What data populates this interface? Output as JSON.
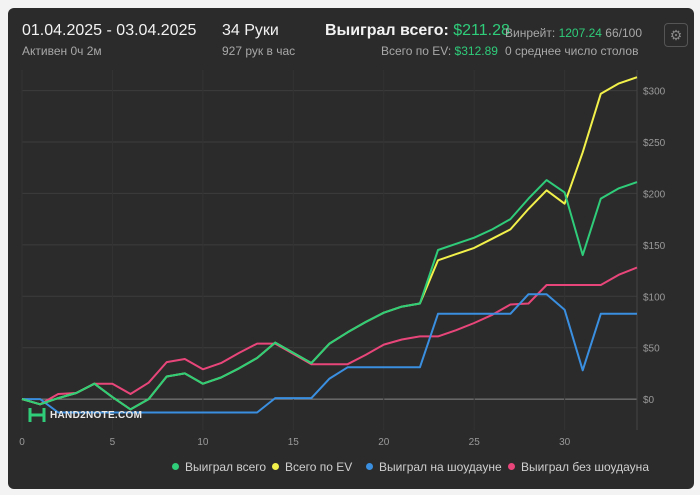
{
  "header": {
    "date_range": "01.04.2025 - 03.04.2025",
    "active": "Активен 0ч 2м",
    "hands": "34 Руки",
    "hands_per_hour": "927 рук в час",
    "won_total_label": "Выиграл всего:",
    "won_total_value": "$211.28",
    "ev_label": "Всего по EV:",
    "ev_value": "$312.89",
    "winrate_label": "Винрейт:",
    "winrate_value": "1207.24",
    "winrate_rest": "66/100",
    "avg_tables": "0 среднее число столов"
  },
  "logo_text": "HAND2NOTE.COM",
  "legend": [
    {
      "label": "Выиграл всего",
      "color": "#2fcc7a"
    },
    {
      "label": "Всего по EV",
      "color": "#f2f04a"
    },
    {
      "label": "Выиграл на шоудауне",
      "color": "#3a8fe0"
    },
    {
      "label": "Выиграл без шоудауна",
      "color": "#e8467a"
    }
  ],
  "chart_data": {
    "type": "line",
    "xlim": [
      0,
      34
    ],
    "ylim": [
      -30,
      320
    ],
    "x_ticks": [
      0,
      5,
      10,
      15,
      20,
      25,
      30
    ],
    "y_ticks": [
      0,
      50,
      100,
      150,
      200,
      250,
      300
    ],
    "y_tick_labels": [
      "$0",
      "$50",
      "$100",
      "$150",
      "$200",
      "$250",
      "$300"
    ],
    "grid": true,
    "series": [
      {
        "name": "Выиграл всего",
        "color": "#2fcc7a",
        "x": [
          0,
          1,
          2,
          3,
          4,
          5,
          6,
          7,
          8,
          9,
          10,
          11,
          12,
          13,
          14,
          15,
          16,
          17,
          18,
          19,
          20,
          21,
          22,
          23,
          24,
          25,
          26,
          27,
          28,
          29,
          30,
          31,
          32,
          33,
          34
        ],
        "values": [
          0,
          -5,
          1,
          6,
          15,
          2,
          -10,
          0,
          22,
          25,
          15,
          21,
          30,
          40,
          55,
          45,
          35,
          54,
          65,
          75,
          84,
          90,
          93,
          145,
          151,
          157,
          165,
          175,
          195,
          213,
          201,
          140,
          195,
          205,
          211
        ]
      },
      {
        "name": "Всего по EV",
        "color": "#f2f04a",
        "x": [
          0,
          1,
          2,
          3,
          4,
          5,
          6,
          7,
          8,
          9,
          10,
          11,
          12,
          13,
          14,
          15,
          16,
          17,
          18,
          19,
          20,
          21,
          22,
          23,
          24,
          25,
          26,
          27,
          28,
          29,
          30,
          31,
          32,
          33,
          34
        ],
        "values": [
          0,
          -5,
          1,
          6,
          15,
          2,
          -10,
          0,
          22,
          25,
          15,
          21,
          30,
          40,
          55,
          45,
          35,
          54,
          65,
          75,
          84,
          90,
          93,
          135,
          141,
          147,
          156,
          165,
          185,
          203,
          190,
          240,
          297,
          307,
          313
        ]
      },
      {
        "name": "Выиграл на шоудауне",
        "color": "#3a8fe0",
        "x": [
          0,
          1,
          2,
          3,
          4,
          5,
          6,
          7,
          8,
          9,
          10,
          11,
          12,
          13,
          14,
          15,
          16,
          17,
          18,
          19,
          20,
          21,
          22,
          23,
          24,
          25,
          26,
          27,
          28,
          29,
          30,
          31,
          32,
          33,
          34
        ],
        "values": [
          0,
          0,
          -13,
          -13,
          -13,
          -13,
          -13,
          -13,
          -13,
          -13,
          -13,
          -13,
          -13,
          -13,
          1,
          1,
          1,
          20,
          31,
          31,
          31,
          31,
          31,
          83,
          83,
          83,
          83,
          83,
          102,
          102,
          87,
          28,
          83,
          83,
          83
        ]
      },
      {
        "name": "Выиграл без шоудауна",
        "color": "#e8467a",
        "x": [
          0,
          1,
          2,
          3,
          4,
          5,
          6,
          7,
          8,
          9,
          10,
          11,
          12,
          13,
          14,
          15,
          16,
          17,
          18,
          19,
          20,
          21,
          22,
          23,
          24,
          25,
          26,
          27,
          28,
          29,
          30,
          31,
          32,
          33,
          34
        ],
        "values": [
          0,
          -5,
          5,
          6,
          15,
          15,
          5,
          16,
          36,
          39,
          29,
          35,
          45,
          54,
          54,
          44,
          34,
          34,
          34,
          43,
          53,
          58,
          61,
          61,
          67,
          74,
          82,
          92,
          93,
          111,
          111,
          111,
          111,
          121,
          128
        ]
      }
    ]
  }
}
